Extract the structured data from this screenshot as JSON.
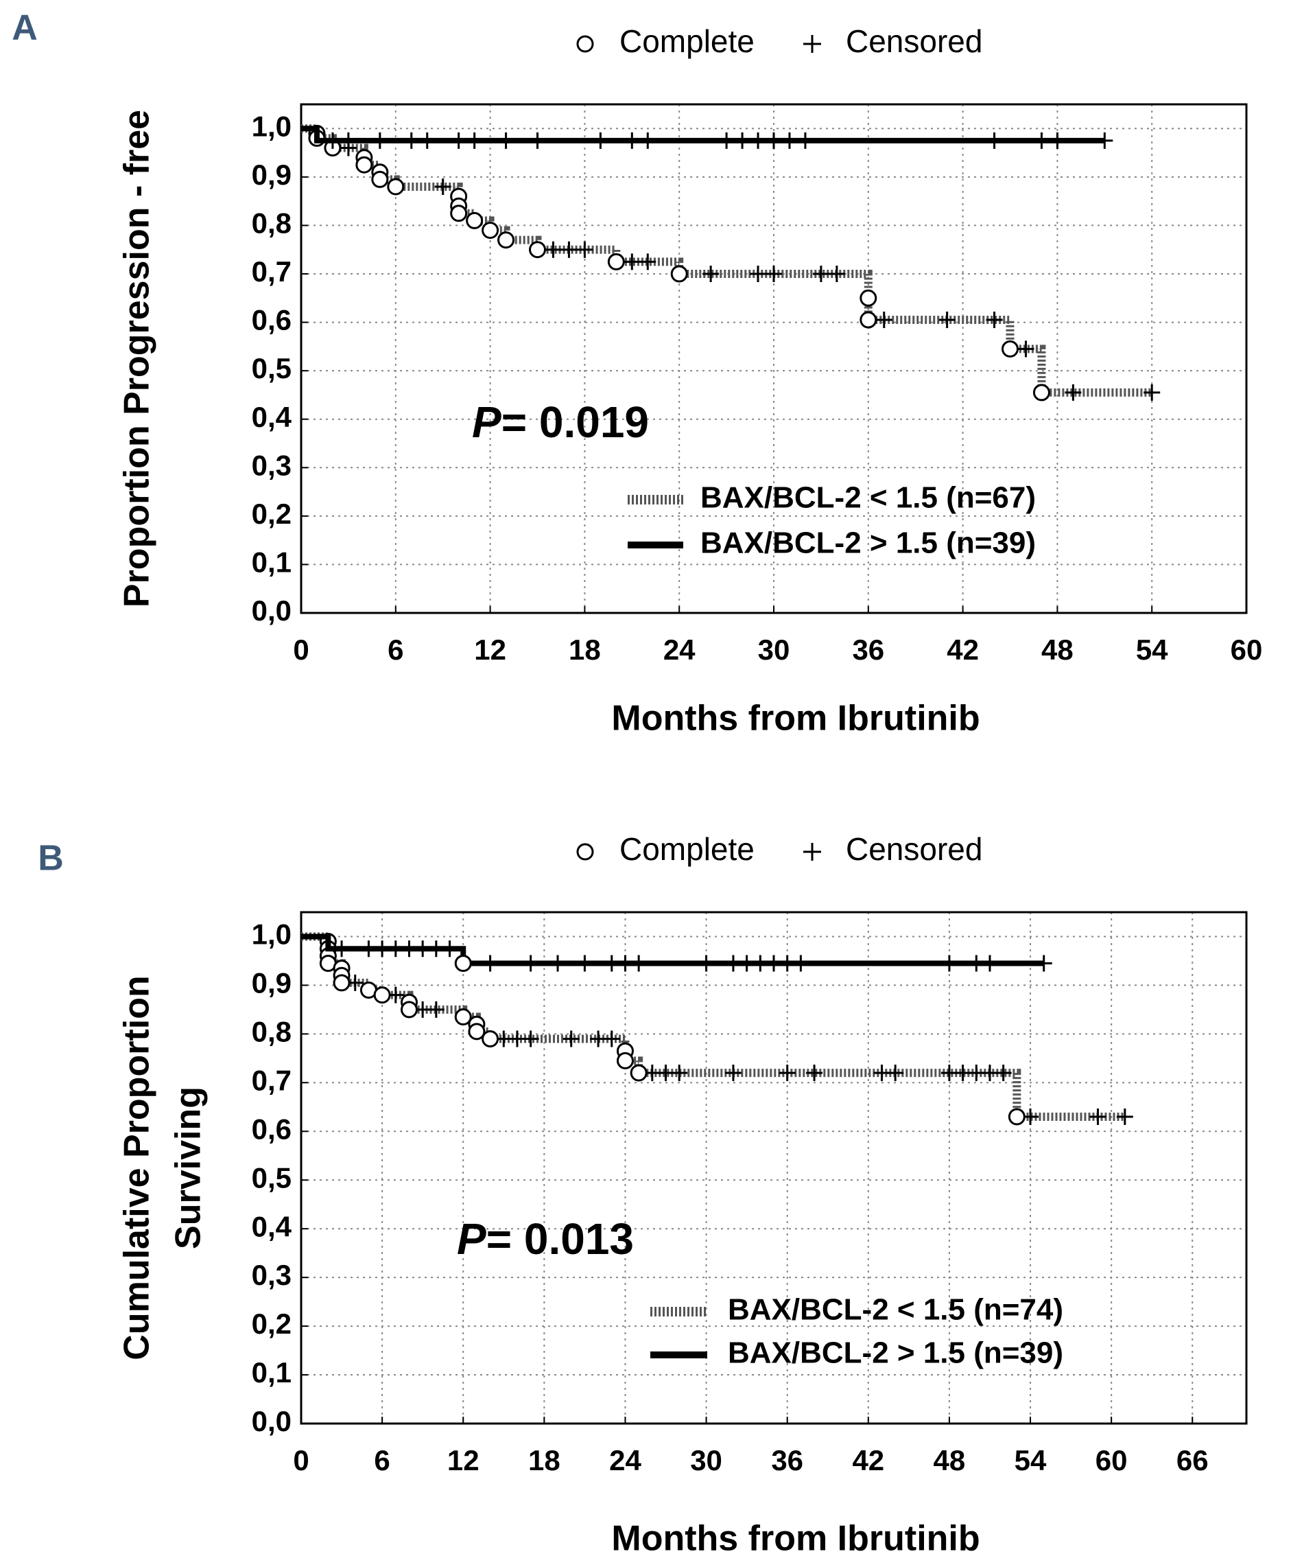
{
  "chart_data": [
    {
      "type": "step",
      "panel": "A",
      "marker_legend": [
        "Complete",
        "Censored"
      ],
      "ylabel": "Proportion Progression - free",
      "xlabel": "Months from Ibrutinib",
      "annotation": {
        "symbol": "P",
        "text": "= 0.019"
      },
      "xlim": [
        0,
        60
      ],
      "xticks": [
        0,
        6,
        12,
        18,
        24,
        30,
        36,
        42,
        48,
        54,
        60
      ],
      "ylim": [
        0,
        1.05
      ],
      "yticks": [
        {
          "value": 0,
          "label": "0,0"
        },
        {
          "value": 0.1,
          "label": "0,1"
        },
        {
          "value": 0.2,
          "label": "0,2"
        },
        {
          "value": 0.3,
          "label": "0,3"
        },
        {
          "value": 0.4,
          "label": "0,4"
        },
        {
          "value": 0.5,
          "label": "0,5"
        },
        {
          "value": 0.6,
          "label": "0,6"
        },
        {
          "value": 0.7,
          "label": "0,7"
        },
        {
          "value": 0.8,
          "label": "0,8"
        },
        {
          "value": 0.9,
          "label": "0,9"
        },
        {
          "value": 1,
          "label": "1,0"
        }
      ],
      "grid": true,
      "series": [
        {
          "name": "BAX/BCL-2 < 1.5 (n=67)",
          "style": "hatched",
          "color": "#555555",
          "x": [
            0,
            1,
            2,
            4,
            5,
            6,
            10,
            11,
            12,
            13,
            15,
            20,
            24,
            36,
            45,
            47,
            54
          ],
          "values": [
            1,
            0.98,
            0.96,
            0.925,
            0.895,
            0.88,
            0.825,
            0.81,
            0.79,
            0.77,
            0.75,
            0.725,
            0.7,
            0.605,
            0.545,
            0.455,
            0.455
          ],
          "events": {
            "x": [
              1,
              1,
              2,
              4,
              4,
              5,
              5,
              6,
              10,
              10,
              10,
              11,
              12,
              13,
              15,
              20,
              24,
              36,
              36,
              45,
              47
            ],
            "values": [
              0.99,
              0.98,
              0.96,
              0.94,
              0.925,
              0.91,
              0.895,
              0.88,
              0.86,
              0.84,
              0.825,
              0.81,
              0.79,
              0.77,
              0.75,
              0.725,
              0.7,
              0.65,
              0.605,
              0.545,
              0.455
            ]
          },
          "censored": {
            "x": [
              3,
              9,
              16,
              17,
              18,
              21,
              22,
              26,
              29,
              30,
              33,
              34,
              37,
              41,
              44,
              46,
              49,
              54
            ],
            "values": [
              0.96,
              0.88,
              0.75,
              0.75,
              0.75,
              0.725,
              0.725,
              0.7,
              0.7,
              0.7,
              0.7,
              0.7,
              0.605,
              0.605,
              0.605,
              0.545,
              0.455,
              0.455
            ]
          }
        },
        {
          "name": "BAX/BCL-2 > 1.5 (n=39)",
          "style": "solid",
          "color": "#000000",
          "x": [
            0,
            1,
            51
          ],
          "values": [
            1,
            0.975,
            0.975
          ],
          "events": {
            "x": [],
            "values": []
          },
          "censored": {
            "x": [
              2,
              3,
              5,
              7,
              8,
              10,
              11,
              13,
              15,
              19,
              21,
              22,
              27,
              28,
              29,
              30,
              31,
              32,
              44,
              47,
              48,
              51
            ],
            "values": [
              0.975,
              0.975,
              0.975,
              0.975,
              0.975,
              0.975,
              0.975,
              0.975,
              0.975,
              0.975,
              0.975,
              0.975,
              0.975,
              0.975,
              0.975,
              0.975,
              0.975,
              0.975,
              0.975,
              0.975,
              0.975,
              0.975
            ]
          }
        }
      ]
    },
    {
      "type": "step",
      "panel": "B",
      "marker_legend": [
        "Complete",
        "Censored"
      ],
      "ylabel": [
        "Cumulative Proportion",
        "Surviving"
      ],
      "xlabel": "Months from Ibrutinib",
      "annotation": {
        "symbol": "P",
        "text": "= 0.013"
      },
      "xlim": [
        0,
        70
      ],
      "xticks": [
        0,
        6,
        12,
        18,
        24,
        30,
        36,
        42,
        48,
        54,
        60,
        66
      ],
      "ylim": [
        0,
        1.05
      ],
      "yticks": [
        {
          "value": 0,
          "label": "0,0"
        },
        {
          "value": 0.1,
          "label": "0,1"
        },
        {
          "value": 0.2,
          "label": "0,2"
        },
        {
          "value": 0.3,
          "label": "0,3"
        },
        {
          "value": 0.4,
          "label": "0,4"
        },
        {
          "value": 0.5,
          "label": "0,5"
        },
        {
          "value": 0.6,
          "label": "0,6"
        },
        {
          "value": 0.7,
          "label": "0,7"
        },
        {
          "value": 0.8,
          "label": "0,8"
        },
        {
          "value": 0.9,
          "label": "0,9"
        },
        {
          "value": 1,
          "label": "1,0"
        }
      ],
      "grid": true,
      "series": [
        {
          "name": "BAX/BCL-2 < 1.5 (n=74)",
          "style": "hatched",
          "color": "#555555",
          "x": [
            0,
            2,
            3,
            5,
            6,
            8,
            12,
            13,
            14,
            24,
            25,
            53,
            61
          ],
          "values": [
            1,
            0.945,
            0.905,
            0.89,
            0.88,
            0.85,
            0.835,
            0.805,
            0.79,
            0.745,
            0.72,
            0.63,
            0.63
          ],
          "events": {
            "x": [
              2,
              2,
              2,
              2,
              3,
              3,
              3,
              5,
              6,
              8,
              8,
              12,
              13,
              13,
              14,
              24,
              24,
              25,
              53
            ],
            "values": [
              0.99,
              0.975,
              0.96,
              0.945,
              0.935,
              0.92,
              0.905,
              0.89,
              0.88,
              0.865,
              0.85,
              0.835,
              0.82,
              0.805,
              0.79,
              0.765,
              0.745,
              0.72,
              0.63
            ]
          },
          "censored": {
            "x": [
              4,
              7,
              9,
              10,
              15,
              16,
              17,
              20,
              22,
              23,
              26,
              27,
              28,
              32,
              36,
              38,
              43,
              44,
              48,
              49,
              50,
              51,
              52,
              54,
              59,
              61
            ],
            "values": [
              0.905,
              0.88,
              0.85,
              0.85,
              0.79,
              0.79,
              0.79,
              0.79,
              0.79,
              0.79,
              0.72,
              0.72,
              0.72,
              0.72,
              0.72,
              0.72,
              0.72,
              0.72,
              0.72,
              0.72,
              0.72,
              0.72,
              0.72,
              0.63,
              0.63,
              0.63
            ]
          }
        },
        {
          "name": "BAX/BCL-2 > 1.5 (n=39)",
          "style": "solid",
          "color": "#000000",
          "x": [
            0,
            2,
            12,
            55
          ],
          "values": [
            1,
            0.975,
            0.945,
            0.945
          ],
          "events": {
            "x": [
              12
            ],
            "values": [
              0.945
            ]
          },
          "censored": {
            "x": [
              3,
              5,
              6,
              7,
              8,
              9,
              10,
              11,
              14,
              17,
              19,
              21,
              23,
              24,
              25,
              30,
              32,
              33,
              34,
              35,
              36,
              37,
              48,
              50,
              51,
              55
            ],
            "values": [
              0.975,
              0.975,
              0.975,
              0.975,
              0.975,
              0.975,
              0.975,
              0.975,
              0.945,
              0.945,
              0.945,
              0.945,
              0.945,
              0.945,
              0.945,
              0.945,
              0.945,
              0.945,
              0.945,
              0.945,
              0.945,
              0.945,
              0.945,
              0.945,
              0.945,
              0.945
            ]
          }
        }
      ]
    }
  ]
}
